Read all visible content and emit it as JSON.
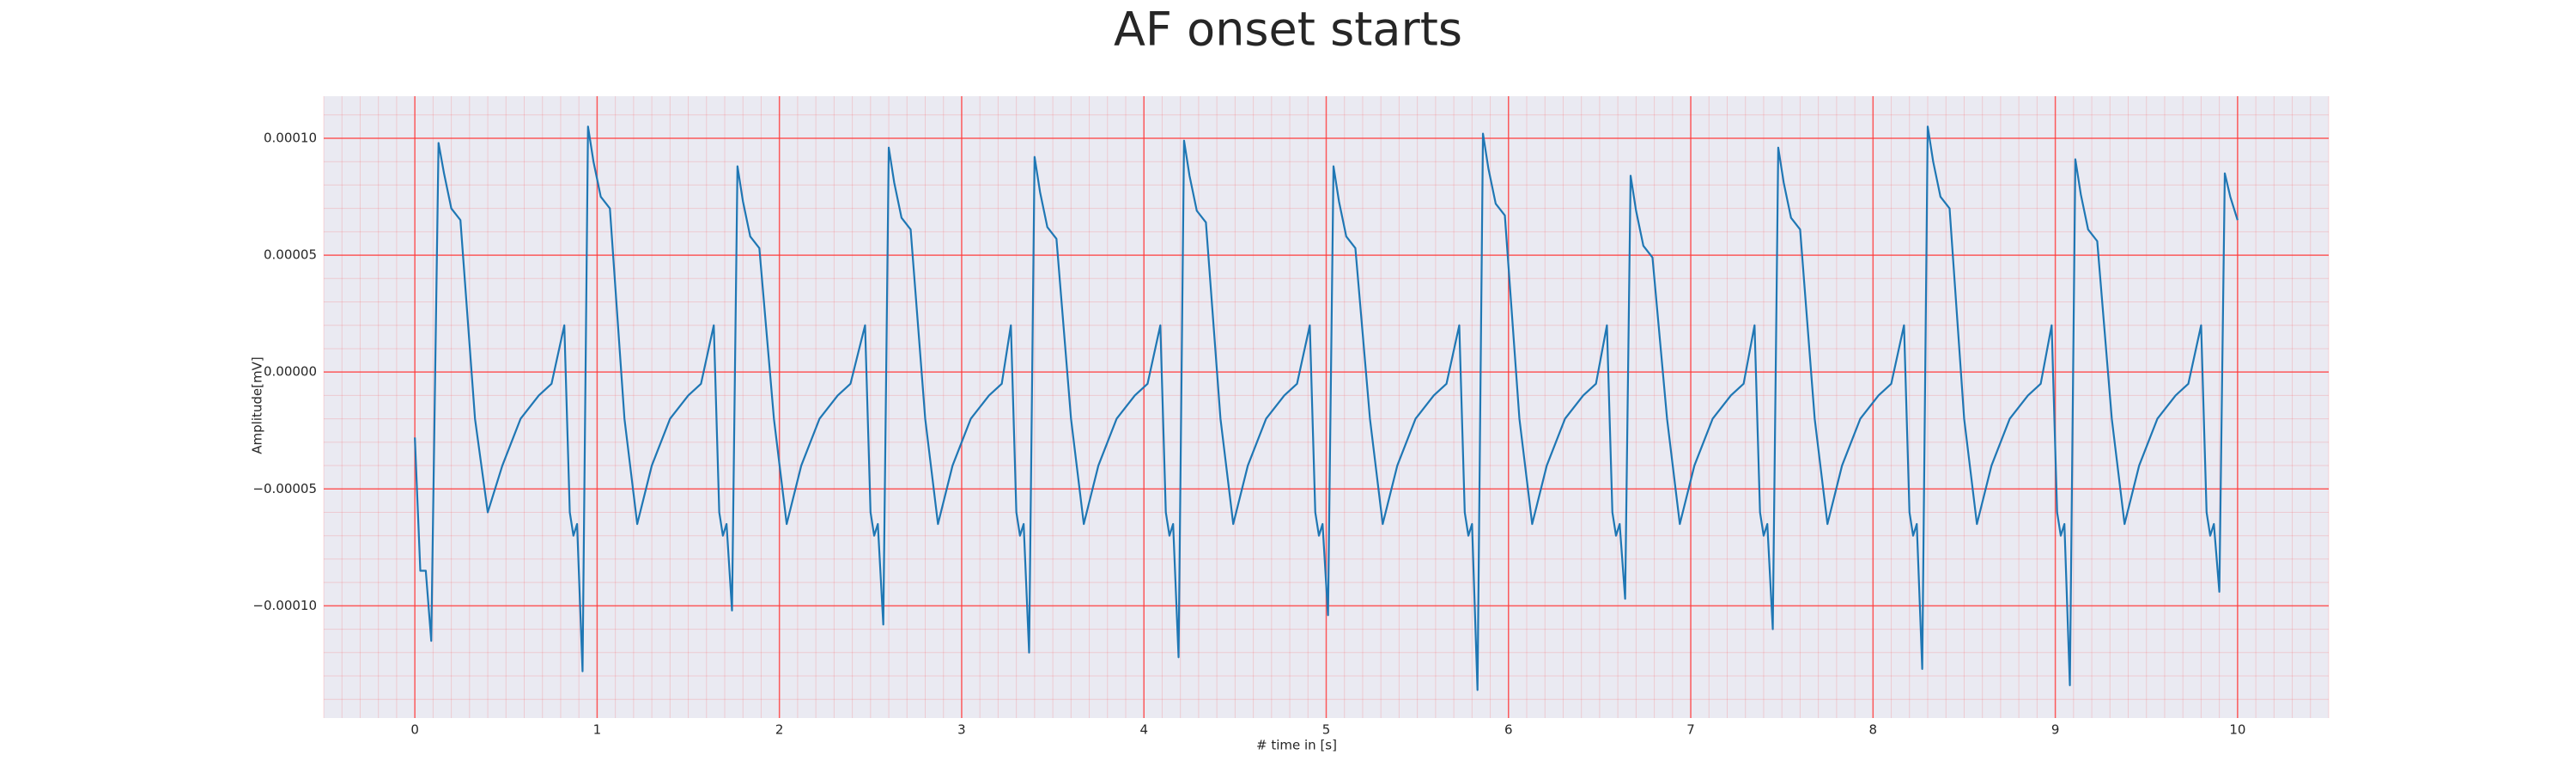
{
  "chart_data": {
    "type": "line",
    "title": "AF onset starts",
    "xlabel": "# time in [s]",
    "ylabel": "Amplitude[mV]",
    "xlim": [
      -0.5,
      10.5
    ],
    "ylim": [
      -0.000148,
      0.000118
    ],
    "xticks": [
      0,
      1,
      2,
      3,
      4,
      5,
      6,
      7,
      8,
      9,
      10
    ],
    "yticks": [
      {
        "value": -0.0001,
        "label": "−0.00010"
      },
      {
        "value": -5e-05,
        "label": "−0.00005"
      },
      {
        "value": 0,
        "label": "0.00000"
      },
      {
        "value": 5e-05,
        "label": "0.00005"
      },
      {
        "value": 0.0001,
        "label": "0.00010"
      }
    ],
    "grid": true,
    "minor_grid": true,
    "grid_color": "#ff3b3b",
    "background": "#eaeaf2",
    "series": [
      {
        "color": "#1f77b4",
        "x": [
          0,
          0.03,
          0.06,
          0.09,
          0.13,
          0.16,
          0.2,
          0.25,
          0.33,
          0.4,
          0.48,
          0.58,
          0.68,
          0.75,
          0.82,
          0.85,
          0.87,
          0.89,
          0.92,
          0.95,
          0.98,
          1.02,
          1.07,
          1.15,
          1.22,
          1.3,
          1.4,
          1.5,
          1.57,
          1.64,
          1.67,
          1.69,
          1.71,
          1.74,
          1.77,
          1.8,
          1.84,
          1.89,
          1.97,
          2.04,
          2.12,
          2.22,
          2.32,
          2.39,
          2.47,
          2.5,
          2.52,
          2.54,
          2.57,
          2.6,
          2.63,
          2.67,
          2.72,
          2.8,
          2.87,
          2.95,
          3.05,
          3.15,
          3.22,
          3.27,
          3.3,
          3.32,
          3.34,
          3.37,
          3.4,
          3.43,
          3.47,
          3.52,
          3.6,
          3.67,
          3.75,
          3.85,
          3.95,
          4.02,
          4.09,
          4.12,
          4.14,
          4.16,
          4.19,
          4.22,
          4.25,
          4.29,
          4.34,
          4.42,
          4.49,
          4.57,
          4.67,
          4.77,
          4.84,
          4.91,
          4.94,
          4.96,
          4.98,
          5.01,
          5.04,
          5.07,
          5.11,
          5.16,
          5.24,
          5.31,
          5.39,
          5.49,
          5.59,
          5.66,
          5.73,
          5.76,
          5.78,
          5.8,
          5.83,
          5.86,
          5.89,
          5.93,
          5.98,
          6.06,
          6.13,
          6.21,
          6.31,
          6.41,
          6.48,
          6.54,
          6.57,
          6.59,
          6.61,
          6.64,
          6.67,
          6.7,
          6.74,
          6.79,
          6.87,
          6.94,
          7.02,
          7.12,
          7.22,
          7.29,
          7.35,
          7.38,
          7.4,
          7.42,
          7.45,
          7.48,
          7.51,
          7.55,
          7.6,
          7.68,
          7.75,
          7.83,
          7.93,
          8.03,
          8.1,
          8.17,
          8.2,
          8.22,
          8.24,
          8.27,
          8.3,
          8.33,
          8.37,
          8.42,
          8.5,
          8.57,
          8.65,
          8.75,
          8.85,
          8.92,
          8.98,
          9.01,
          9.03,
          9.05,
          9.08,
          9.11,
          9.14,
          9.18,
          9.23,
          9.31,
          9.38,
          9.46,
          9.56,
          9.66,
          9.73,
          9.8,
          9.83,
          9.85,
          9.87,
          9.9,
          9.93,
          9.96,
          10.0
        ],
        "values": [
          -2.8e-05,
          -8.5e-05,
          -8.5e-05,
          -0.000115,
          9.8e-05,
          8.5e-05,
          7e-05,
          6.5e-05,
          -2e-05,
          -6e-05,
          -4e-05,
          -2e-05,
          -1e-05,
          -5e-06,
          2e-05,
          -6e-05,
          -7e-05,
          -6.5e-05,
          -0.000128,
          0.000105,
          9e-05,
          7.5e-05,
          7e-05,
          -2e-05,
          -6.5e-05,
          -4e-05,
          -2e-05,
          -1e-05,
          -5e-06,
          2e-05,
          -6e-05,
          -7e-05,
          -6.5e-05,
          -0.000102,
          8.8e-05,
          7.3e-05,
          5.8e-05,
          5.3e-05,
          -2e-05,
          -6.5e-05,
          -4e-05,
          -2e-05,
          -1e-05,
          -5e-06,
          2e-05,
          -6e-05,
          -7e-05,
          -6.5e-05,
          -0.000108,
          9.6e-05,
          8.1e-05,
          6.6e-05,
          6.1e-05,
          -2e-05,
          -6.5e-05,
          -4e-05,
          -2e-05,
          -1e-05,
          -5e-06,
          2e-05,
          -6e-05,
          -7e-05,
          -6.5e-05,
          -0.00012,
          9.2e-05,
          7.7e-05,
          6.2e-05,
          5.7e-05,
          -2e-05,
          -6.5e-05,
          -4e-05,
          -2e-05,
          -1e-05,
          -5e-06,
          2e-05,
          -6e-05,
          -7e-05,
          -6.5e-05,
          -0.000122,
          9.9e-05,
          8.4e-05,
          6.9e-05,
          6.4e-05,
          -2e-05,
          -6.5e-05,
          -4e-05,
          -2e-05,
          -1e-05,
          -5e-06,
          2e-05,
          -6e-05,
          -7e-05,
          -6.5e-05,
          -0.000104,
          8.8e-05,
          7.3e-05,
          5.8e-05,
          5.3e-05,
          -2e-05,
          -6.5e-05,
          -4e-05,
          -2e-05,
          -1e-05,
          -5e-06,
          2e-05,
          -6e-05,
          -7e-05,
          -6.5e-05,
          -0.000136,
          0.000102,
          8.7e-05,
          7.2e-05,
          6.7e-05,
          -2e-05,
          -6.5e-05,
          -4e-05,
          -2e-05,
          -1e-05,
          -5e-06,
          2e-05,
          -6e-05,
          -7e-05,
          -6.5e-05,
          -9.7e-05,
          8.4e-05,
          6.9e-05,
          5.4e-05,
          4.9e-05,
          -2e-05,
          -6.5e-05,
          -4e-05,
          -2e-05,
          -1e-05,
          -5e-06,
          2e-05,
          -6e-05,
          -7e-05,
          -6.5e-05,
          -0.00011,
          9.6e-05,
          8.1e-05,
          6.6e-05,
          6.1e-05,
          -2e-05,
          -6.5e-05,
          -4e-05,
          -2e-05,
          -1e-05,
          -5e-06,
          2e-05,
          -6e-05,
          -7e-05,
          -6.5e-05,
          -0.000127,
          0.000105,
          9e-05,
          7.5e-05,
          7e-05,
          -2e-05,
          -6.5e-05,
          -4e-05,
          -2e-05,
          -1e-05,
          -5e-06,
          2e-05,
          -6e-05,
          -7e-05,
          -6.5e-05,
          -0.000134,
          9.1e-05,
          7.6e-05,
          6.1e-05,
          5.6e-05,
          -2e-05,
          -6.5e-05,
          -4e-05,
          -2e-05,
          -1e-05,
          -5e-06,
          2e-05,
          -6e-05,
          -7e-05,
          -6.5e-05,
          -9.4e-05,
          8.5e-05,
          7.5e-05,
          6.5e-05
        ]
      }
    ]
  }
}
